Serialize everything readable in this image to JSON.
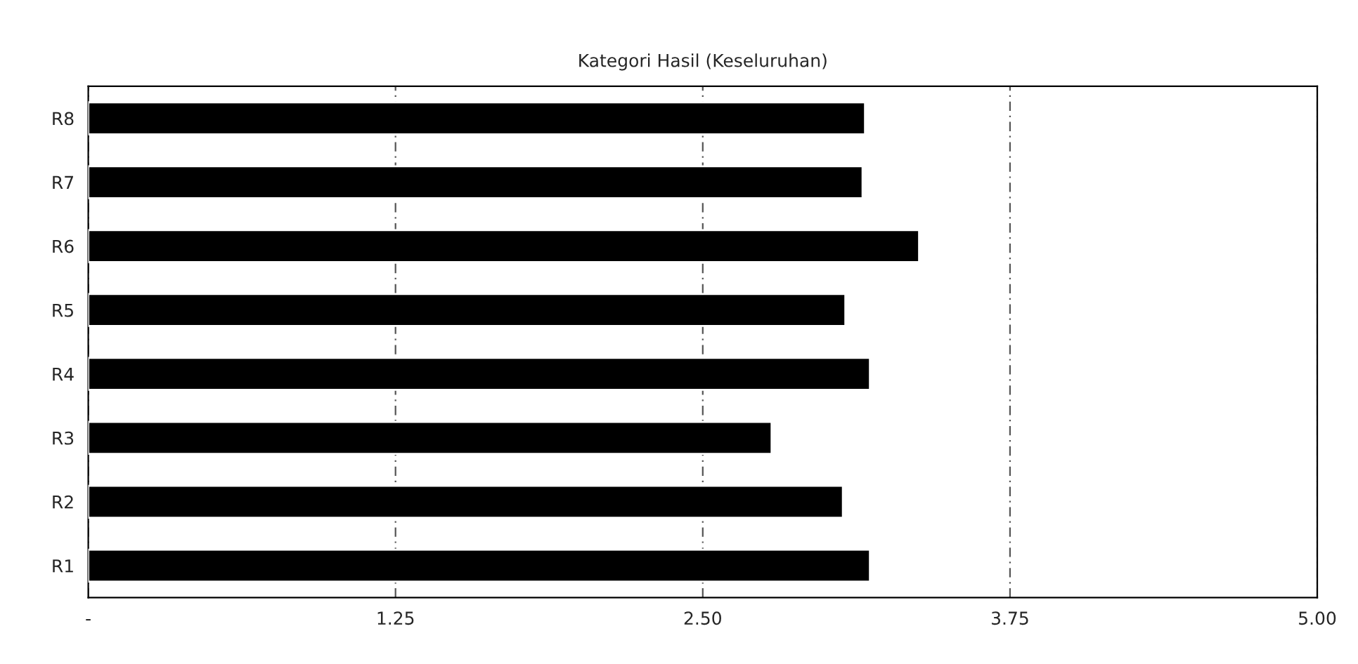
{
  "chart_data": {
    "type": "bar",
    "orientation": "horizontal",
    "title": "Kategori Hasil (Keseluruhan)",
    "categories": [
      "R8",
      "R7",
      "R6",
      "R5",
      "R4",
      "R3",
      "R2",
      "R1"
    ],
    "values": [
      3.16,
      3.15,
      3.38,
      3.08,
      3.18,
      2.78,
      3.07,
      3.18
    ],
    "color": "#000000",
    "xlim": [
      0,
      5
    ],
    "xticks": [
      {
        "value": 0,
        "label": "-"
      },
      1.25,
      {
        "value": 2.5,
        "label": "2.50"
      },
      3.75,
      {
        "value": 5,
        "label": "5.00"
      }
    ],
    "grid": "x"
  }
}
